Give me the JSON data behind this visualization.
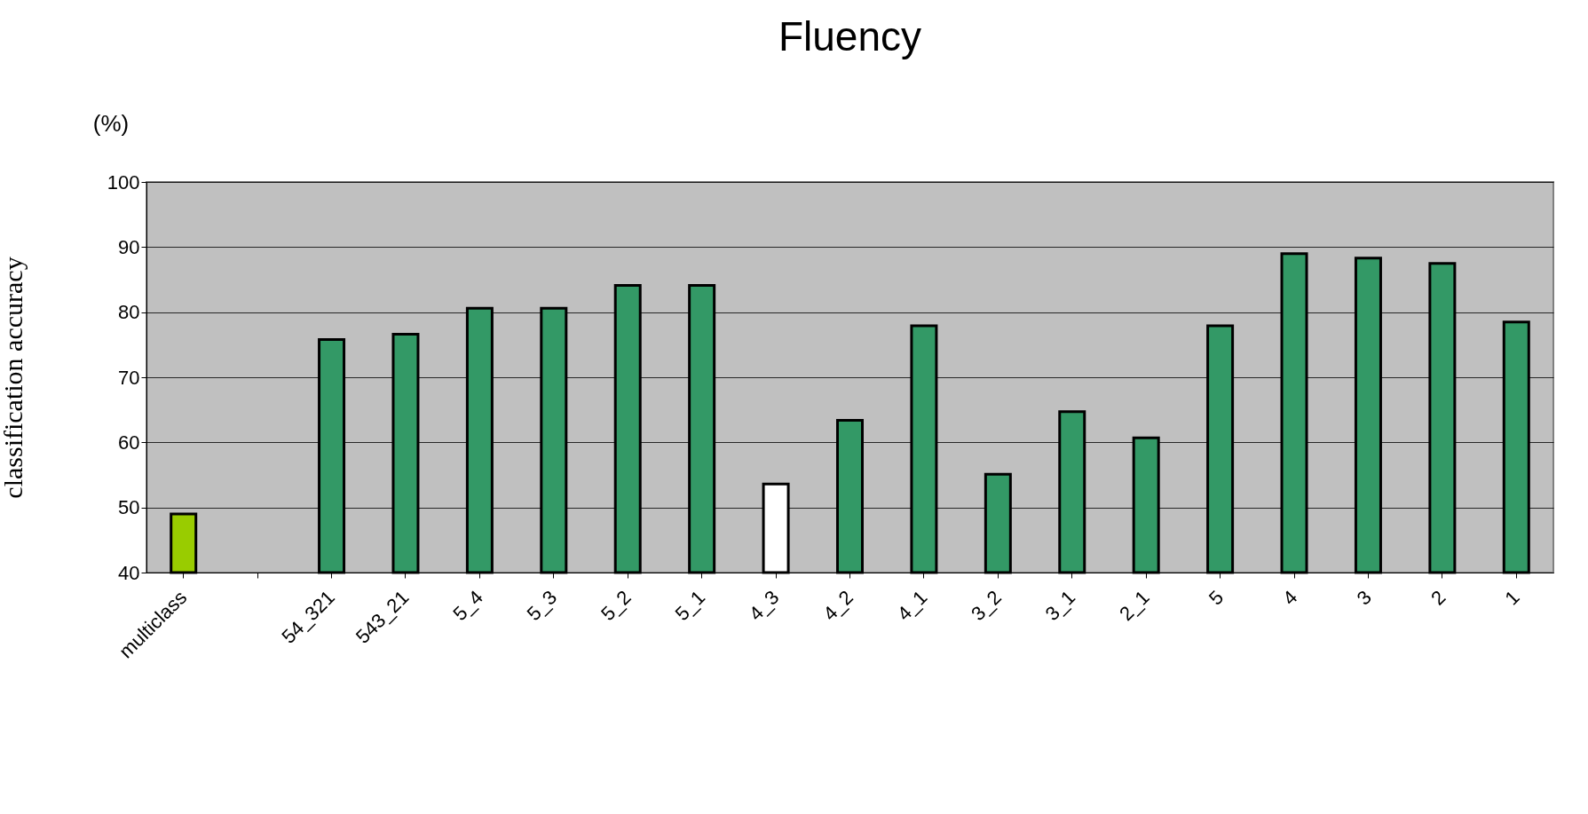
{
  "chart_data": {
    "type": "bar",
    "title": "Fluency",
    "ylabel": "classification accuracy",
    "annotations": [
      "(%)"
    ],
    "categories": [
      "multiclass",
      null,
      "54_321",
      "543_21",
      "5_4",
      "5_3",
      "5_2",
      "5_1",
      "4_3",
      "4_2",
      "4_1",
      "3_2",
      "3_1",
      "2_1",
      "5",
      "4",
      "3",
      "2",
      "1"
    ],
    "values": [
      49,
      null,
      75.8,
      76.6,
      80.6,
      80.6,
      84.1,
      84.1,
      53.6,
      63.4,
      77.9,
      55.1,
      64.7,
      60.7,
      77.9,
      89,
      88.3,
      87.5,
      78.5
    ],
    "colors": [
      "#99cc00",
      "#339966",
      "#339966",
      "#339966",
      "#339966",
      "#339966",
      "#339966",
      "#339966",
      "#ffffff",
      "#339966",
      "#339966",
      "#339966",
      "#339966",
      "#339966",
      "#339966",
      "#339966",
      "#339966",
      "#339966",
      "#339966"
    ],
    "ylim": [
      40,
      100
    ],
    "yticks": [
      40,
      50,
      60,
      70,
      80,
      90,
      100
    ],
    "grid": "y"
  }
}
